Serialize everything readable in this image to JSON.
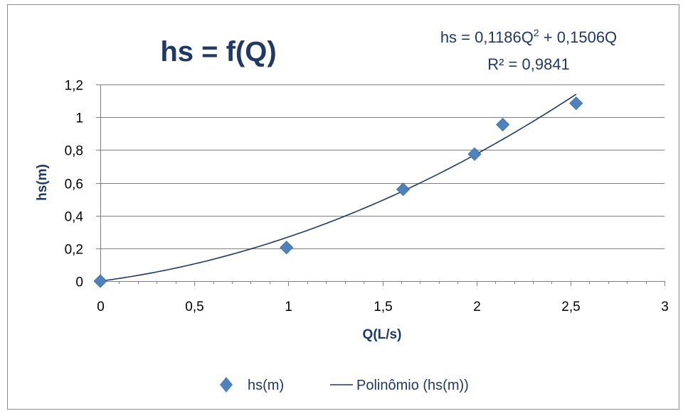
{
  "chart_data": {
    "type": "scatter",
    "title": "hs = f(Q)",
    "xlabel": "Q(L/s)",
    "ylabel": "hs(m)",
    "xlim": [
      0,
      3
    ],
    "ylim": [
      0,
      1.2
    ],
    "x_ticks": [
      "0",
      "0,5",
      "1",
      "1,5",
      "2",
      "2,5",
      "3"
    ],
    "y_ticks": [
      "0",
      "0,2",
      "0,4",
      "0,6",
      "0,8",
      "1",
      "1,2"
    ],
    "grid": true,
    "legend_position": "bottom",
    "series": [
      {
        "name": "hs(m)",
        "kind": "scatter",
        "marker": "diamond",
        "color": "#4f81bd",
        "points": [
          {
            "x": 0,
            "y": 0
          },
          {
            "x": 0.99,
            "y": 0.205
          },
          {
            "x": 1.61,
            "y": 0.56
          },
          {
            "x": 1.99,
            "y": 0.775
          },
          {
            "x": 2.14,
            "y": 0.955
          },
          {
            "x": 2.53,
            "y": 1.085
          }
        ]
      },
      {
        "name": "Polinômio (hs(m))",
        "kind": "trendline",
        "color": "#1f3864",
        "coefficients": {
          "a2": 0.1186,
          "a1": 0.1506,
          "a0": 0
        },
        "x_range": [
          0,
          2.53
        ]
      }
    ],
    "annotation": {
      "equation_prefix": "hs = 0,1186Q",
      "equation_exp": "2",
      "equation_suffix": " + 0,1506Q",
      "r2": "R² = 0,9841"
    }
  }
}
